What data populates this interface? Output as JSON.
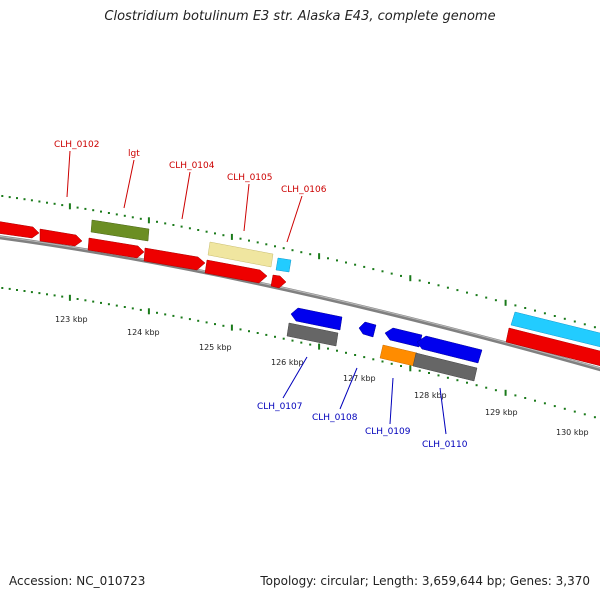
{
  "title": "Clostridium botulinum E3 str. Alaska E43, complete genome",
  "footer": {
    "accession": "Accession: NC_010723",
    "summary": "Topology: circular; Length: 3,659,644 bp; Genes: 3,370"
  },
  "colors": {
    "backbone": "#808080",
    "tick": "#1a7a1a",
    "forward_label": "#cc0000",
    "reverse_label": "#0000bb",
    "red_gene": "#ee0000",
    "olive_gene": "#6b8e23",
    "cream_gene": "#f0e6a0",
    "cyan_gene": "#22ccff",
    "blue_gene": "#0000ee",
    "gray_gene": "#666666",
    "orange_gene": "#ff8c00"
  },
  "kbp_ticks": [
    "123 kbp",
    "124 kbp",
    "125 kbp",
    "126 kbp",
    "127 kbp",
    "128 kbp",
    "129 kbp",
    "130 kbp"
  ],
  "forward_genes": [
    {
      "label": "CLH_0102",
      "color": "#cc0000"
    },
    {
      "label": "lgt",
      "color": "#cc0000"
    },
    {
      "label": "CLH_0104",
      "color": "#cc0000"
    },
    {
      "label": "CLH_0105",
      "color": "#cc0000"
    },
    {
      "label": "CLH_0106",
      "color": "#cc0000"
    }
  ],
  "reverse_genes": [
    {
      "label": "CLH_0107",
      "color": "#0000bb"
    },
    {
      "label": "CLH_0108",
      "color": "#0000bb"
    },
    {
      "label": "CLH_0109",
      "color": "#0000bb"
    },
    {
      "label": "CLH_0110",
      "color": "#0000bb"
    }
  ]
}
